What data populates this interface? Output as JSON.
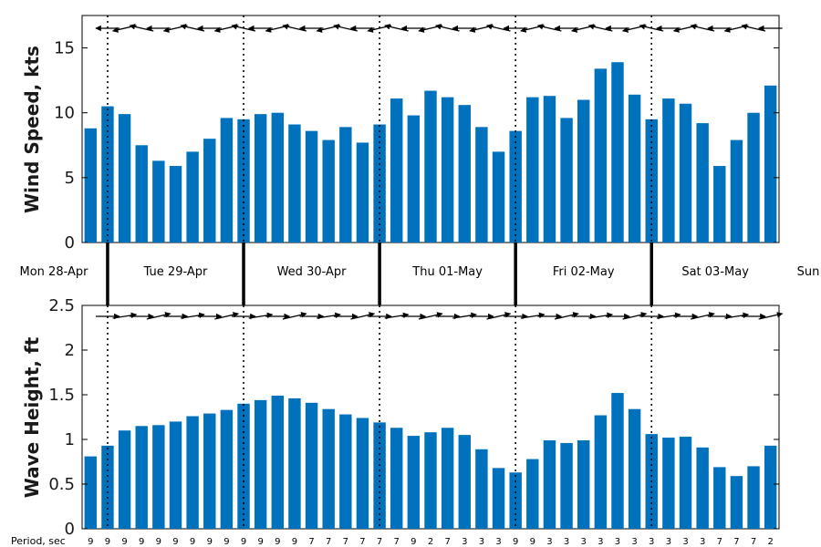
{
  "chart_data": [
    {
      "type": "bar",
      "ylabel": "Wind Speed, kts",
      "ylim": [
        0,
        17.5
      ],
      "yticks": [
        "0",
        "5",
        "10",
        "15"
      ],
      "bar_color": "#0072bd",
      "values": [
        8.8,
        10.5,
        9.9,
        7.5,
        6.3,
        5.9,
        7.0,
        8.0,
        9.6,
        9.5,
        9.9,
        10.0,
        9.1,
        8.6,
        7.9,
        8.9,
        7.7,
        9.1,
        11.1,
        9.8,
        11.7,
        11.2,
        10.6,
        8.9,
        7.0,
        8.6,
        11.2,
        11.3,
        9.6,
        11.0,
        13.4,
        13.9,
        11.4,
        9.5,
        11.1,
        10.7,
        9.2,
        5.9,
        7.9,
        10.0,
        12.1
      ],
      "direction_arrows": "from right, pointing left, tilted slightly"
    },
    {
      "type": "bar",
      "ylabel": "Wave Height, ft",
      "ylim": [
        0,
        2.5
      ],
      "yticks": [
        "0",
        "0.5",
        "1",
        "1.5",
        "2",
        "2.5"
      ],
      "bar_color": "#0072bd",
      "values": [
        0.81,
        0.93,
        1.1,
        1.15,
        1.16,
        1.2,
        1.26,
        1.29,
        1.33,
        1.4,
        1.44,
        1.49,
        1.46,
        1.41,
        1.34,
        1.28,
        1.24,
        1.19,
        1.13,
        1.04,
        1.08,
        1.13,
        1.05,
        0.89,
        0.68,
        0.63,
        0.78,
        0.99,
        0.96,
        0.99,
        1.27,
        1.52,
        1.34,
        1.06,
        1.02,
        1.03,
        0.91,
        0.69,
        0.59,
        0.7,
        0.93
      ],
      "direction_arrows": "pointing right"
    }
  ],
  "days": [
    "Mon 28-Apr",
    "Tue 29-Apr",
    "Wed 30-Apr",
    "Thu 01-May",
    "Fri 02-May",
    "Sat 03-May",
    "Sun"
  ],
  "period_label": "Period, sec",
  "periods": [
    "9",
    "9",
    "9",
    "9",
    "9",
    "9",
    "9",
    "9",
    "9",
    "9",
    "9",
    "9",
    "9",
    "7",
    "7",
    "7",
    "7",
    "7",
    "7",
    "9",
    "2",
    "7",
    "3",
    "3",
    "3",
    "9",
    "9",
    "3",
    "3",
    "3",
    "3",
    "3",
    "3",
    "3",
    "3",
    "3",
    "3",
    "7",
    "7",
    "7",
    "2"
  ]
}
